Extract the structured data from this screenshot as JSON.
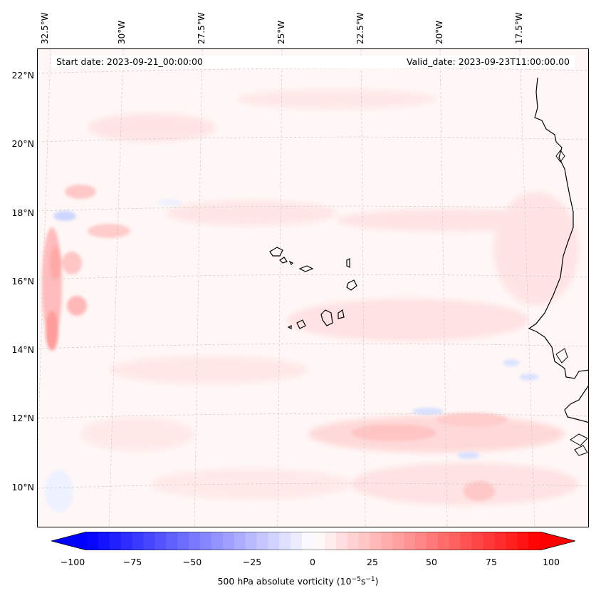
{
  "header": {
    "start_date": "Start date: 2023-09-21_00:00:00",
    "valid_date": "Valid_date: 2023-09-23T11:00:00.00"
  },
  "axes": {
    "lon_labels": [
      "32.5°W",
      "30°W",
      "27.5°W",
      "25°W",
      "22.5°W",
      "20°W",
      "17.5°W"
    ],
    "lat_labels": [
      "22°N",
      "20°N",
      "18°N",
      "16°N",
      "14°N",
      "12°N",
      "10°N"
    ]
  },
  "colorbar": {
    "ticks": [
      "−100",
      "−75",
      "−50",
      "−25",
      "0",
      "25",
      "50",
      "75",
      "100"
    ],
    "label_main": "500 hPa absolute vorticity (10",
    "label_exp1": "−5",
    "label_mid": "s",
    "label_exp2": "−1",
    "label_end": ")",
    "min_color": "#0000ff",
    "mid_color": "#ffffff",
    "max_color": "#ff0000"
  },
  "colors": {
    "background_tint": "#fff7f6",
    "positive_light": "#ffdcdc",
    "positive_mid": "#ffb4b4",
    "negative_light": "#e6ebff",
    "coastline": "#000000",
    "gridline": "#c8c8c8"
  }
}
